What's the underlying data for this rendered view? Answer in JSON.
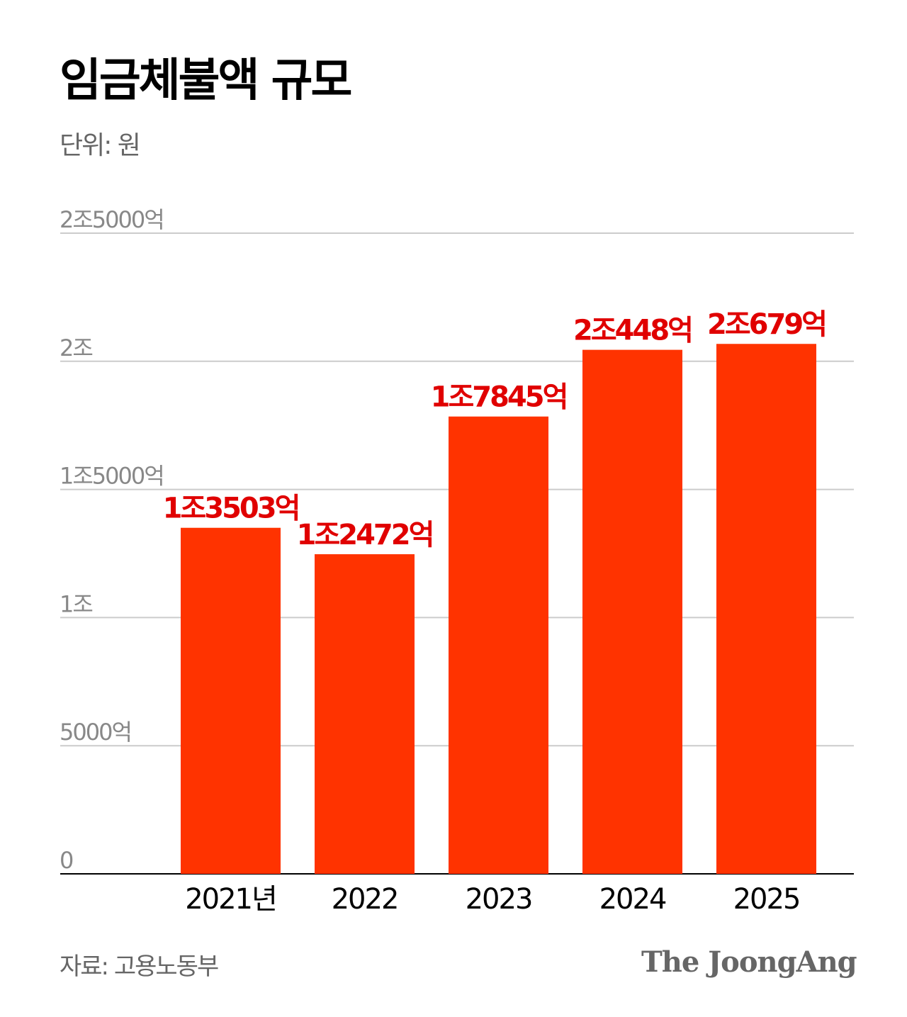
{
  "title": "임금체불액 규모",
  "unit_label": "단위: 원",
  "source": "자료: 고용노동부",
  "logo": "The JoongAng",
  "colors": {
    "bar": "#FF3300",
    "value_label": "#E00000",
    "grid": "#CCCCCC",
    "axis": "#000000",
    "tick_label": "#888888"
  },
  "chart_data": {
    "type": "bar",
    "title": "임금체불액 규모",
    "ylabel": "단위: 원",
    "categories": [
      "2021년",
      "2022",
      "2023",
      "2024",
      "2025"
    ],
    "values": [
      13503,
      12472,
      17845,
      20448,
      20679
    ],
    "value_units": "억원",
    "data_labels": [
      "1조3503억",
      "1조2472억",
      "1조7845억",
      "2조448억",
      "2조679억"
    ],
    "ylim": [
      0,
      25000
    ],
    "yticks": [
      0,
      5000,
      10000,
      15000,
      20000,
      25000
    ],
    "ytick_labels": [
      "0",
      "5000억",
      "1조",
      "1조5000억",
      "2조",
      "2조5000억"
    ],
    "grid": true,
    "legend": "none"
  }
}
